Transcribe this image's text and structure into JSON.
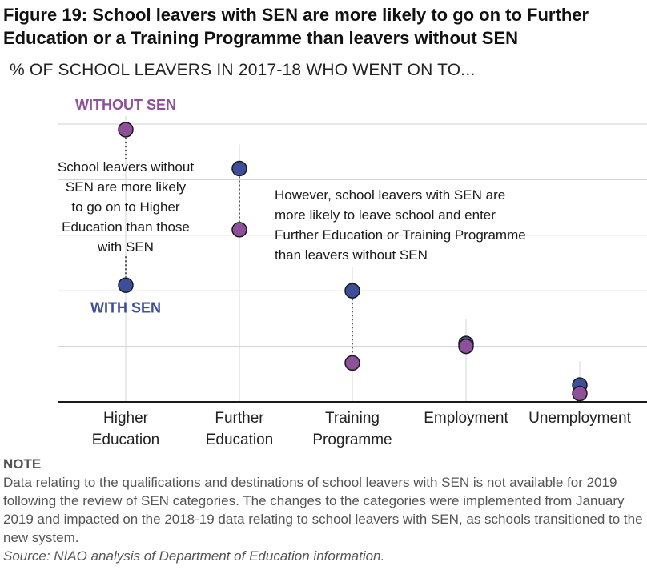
{
  "title": "Figure 19:  School leavers with SEN are more likely to go on to Further\nEducation or a Training Programme than leavers without SEN",
  "subtitle": "% OF SCHOOL LEAVERS IN 2017-18 WHO WENT ON TO...",
  "chart_data": {
    "type": "scatter",
    "categories": [
      "Higher\nEducation",
      "Further\nEducation",
      "Training\nProgramme",
      "Employment",
      "Unemployment"
    ],
    "series": [
      {
        "name": "WITHOUT SEN",
        "color": "#8e4f9b",
        "values": [
          49,
          31,
          7,
          10,
          1.5
        ]
      },
      {
        "name": "WITH SEN",
        "color": "#3d4e9b",
        "values": [
          21,
          42,
          20,
          10.5,
          3
        ]
      }
    ],
    "ylim": [
      0,
      50
    ],
    "gridlines": [
      0,
      10,
      20,
      30,
      40,
      50
    ],
    "legend_placement": "inline labels beside first category",
    "annotations": [
      {
        "text": "School leavers without\nSEN are more likely\nto go on to Higher\nEducation than those\nwith SEN",
        "category": "Higher\nEducation"
      },
      {
        "text": "However, school leavers with SEN are\nmore likely to leave school and enter\nFurther Education or Training Programme\nthan leavers without SEN",
        "category": "Training\nProgramme"
      }
    ]
  },
  "note": {
    "heading": "NOTE",
    "body": "Data relating to the qualifications and destinations of school leavers with SEN is not available for 2019\nfollowing the review of SEN categories.  The changes to the categories were implemented from January\n2019 and impacted on the 2018-19 data relating to school leavers with SEN, as schools transitioned to the\nnew system.",
    "source": "Source: NIAO analysis of Department of Education information."
  }
}
